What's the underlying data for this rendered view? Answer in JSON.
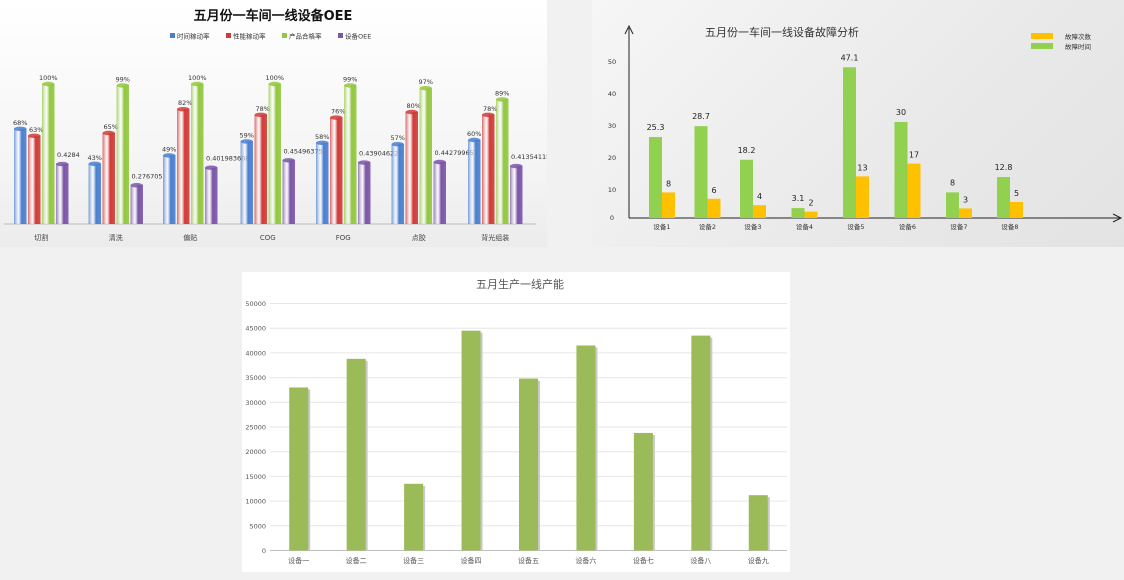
{
  "chart_data": [
    {
      "type": "bar",
      "title": "五月份一车间一线设备OEE",
      "legend_position": "top",
      "categories": [
        "切割",
        "清洗",
        "偏贴",
        "COG",
        "FOG",
        "点胶",
        "背光组装"
      ],
      "series": [
        {
          "name": "时间稼动率",
          "values": [
            0.68,
            0.43,
            0.49,
            0.59,
            0.58,
            0.57,
            0.6
          ],
          "labels": [
            "68%",
            "43%",
            "49%",
            "59%",
            "58%",
            "57%",
            "60%"
          ]
        },
        {
          "name": "性能稼动率",
          "values": [
            0.63,
            0.65,
            0.82,
            0.78,
            0.76,
            0.8,
            0.78
          ],
          "labels": [
            "63%",
            "65%",
            "82%",
            "78%",
            "76%",
            "80%",
            "78%"
          ]
        },
        {
          "name": "产品合格率",
          "values": [
            1.0,
            0.99,
            1.0,
            1.0,
            0.99,
            0.97,
            0.89
          ],
          "labels": [
            "100%",
            "99%",
            "100%",
            "100%",
            "99%",
            "97%",
            "89%"
          ]
        },
        {
          "name": "设备OEE",
          "values": [
            0.4284,
            0.276705,
            0.401983608,
            0.45496375,
            0.439046223,
            0.442799651,
            0.413541156
          ],
          "labels": [
            "0.4284",
            "0.276705",
            "0.401983608",
            "0.45496375",
            "0.439046223",
            "0.442799651",
            "0.413541156"
          ]
        }
      ],
      "colors": [
        "#4a7fd0",
        "#d13b37",
        "#93c740",
        "#7b55a8"
      ],
      "ylim": [
        0,
        1.05
      ],
      "grid": false
    },
    {
      "type": "bar",
      "title": "五月份一车间一线设备故障分析",
      "legend_position": "top-right",
      "categories": [
        "设备1",
        "设备2",
        "设备3",
        "设备4",
        "设备5",
        "设备6",
        "设备7",
        "设备8"
      ],
      "series": [
        {
          "name": "故障次数",
          "values": [
            8,
            6,
            4,
            2,
            13,
            17,
            3,
            5
          ]
        },
        {
          "name": "故障时间",
          "values": [
            25.3,
            28.7,
            18.2,
            3.1,
            47.1,
            30,
            8,
            12.8
          ]
        }
      ],
      "colors": [
        "#ffc000",
        "#92d050"
      ],
      "yticks": [
        0,
        10,
        20,
        30,
        40,
        50
      ],
      "ylim": [
        0,
        55
      ],
      "grid": false
    },
    {
      "type": "bar",
      "title": "五月生产一线产能",
      "categories": [
        "设备一",
        "设备二",
        "设备三",
        "设备四",
        "设备五",
        "设备六",
        "设备七",
        "设备八",
        "设备九"
      ],
      "series": [
        {
          "values": [
            33000,
            38800,
            13500,
            44500,
            34800,
            41500,
            23800,
            43500,
            11200
          ]
        }
      ],
      "colors": [
        "#9bbb59"
      ],
      "yticks": [
        0,
        5000,
        10000,
        15000,
        20000,
        25000,
        30000,
        35000,
        40000,
        45000,
        50000
      ],
      "ylim": [
        0,
        50000
      ],
      "grid": true
    }
  ]
}
